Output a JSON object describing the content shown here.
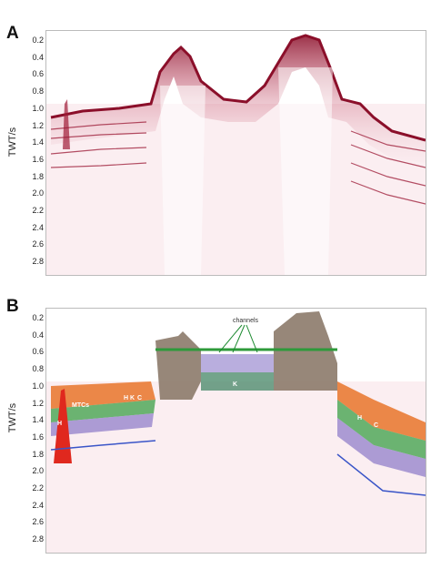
{
  "panelA": {
    "label": "A",
    "ylabel": "TWT/s",
    "ticks": [
      "0.2",
      "0.4",
      "0.6",
      "0.8",
      "1.0",
      "1.2",
      "1.4",
      "1.6",
      "1.8",
      "2.0",
      "2.2",
      "2.4",
      "2.6",
      "2.8"
    ]
  },
  "panelB": {
    "label": "B",
    "ylabel": "TWT/s",
    "ticks": [
      "0.2",
      "0.4",
      "0.6",
      "0.8",
      "1.0",
      "1.2",
      "1.4",
      "1.6",
      "1.8",
      "2.0",
      "2.2",
      "2.4",
      "2.6",
      "2.8"
    ],
    "annotations": {
      "channels": "channels",
      "mtc": "MTCs",
      "h1": "H",
      "h2": "H",
      "h3": "H",
      "k1": "K",
      "k2": "K",
      "c1": "C",
      "c2": "C"
    }
  },
  "colors": {
    "seismic": "#8b0f2a",
    "orange": "#e8742a",
    "green": "#2e9a3a",
    "purple": "#8a78c8",
    "brown": "#8c7a6a",
    "red": "#e0281e"
  }
}
